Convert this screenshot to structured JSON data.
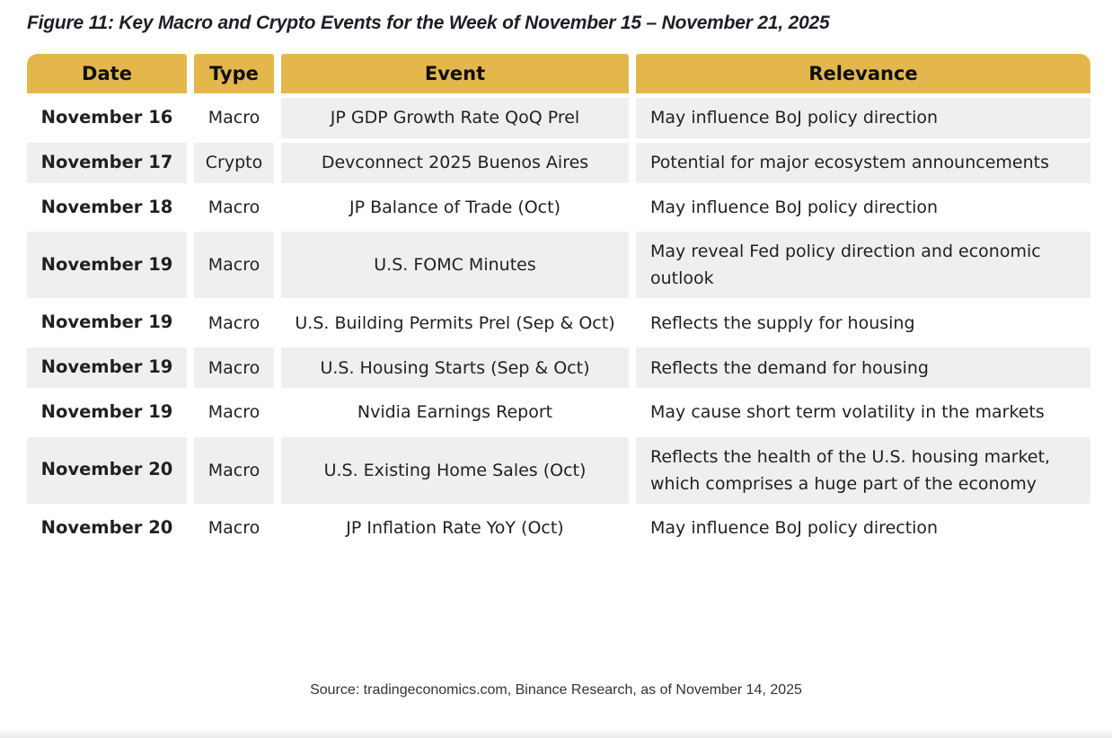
{
  "figure": {
    "title": "Figure 11: Key Macro and Crypto Events for the Week of November 15 – November 21, 2025"
  },
  "table": {
    "headers": [
      "Date",
      "Type",
      "Event",
      "Relevance"
    ],
    "rows": [
      {
        "date": "November 16",
        "type": "Macro",
        "event": "JP GDP Growth Rate QoQ Prel",
        "relevance": "May influence BoJ policy direction",
        "shading": [
          false,
          false,
          true,
          true
        ]
      },
      {
        "date": "November 17",
        "type": "Crypto",
        "event": "Devconnect 2025 Buenos Aires",
        "relevance": "Potential for major ecosystem announcements",
        "shading": [
          true,
          true,
          true,
          true
        ]
      },
      {
        "date": "November 18",
        "type": "Macro",
        "event": "JP Balance of Trade (Oct)",
        "relevance": "May influence BoJ policy direction",
        "shading": [
          false,
          false,
          false,
          false
        ]
      },
      {
        "date": "November 19",
        "type": "Macro",
        "event": "U.S. FOMC Minutes",
        "relevance": "May reveal Fed policy direction and economic outlook",
        "shading": [
          true,
          true,
          true,
          true
        ]
      },
      {
        "date": "November 19",
        "type": "Macro",
        "event": "U.S. Building Permits Prel (Sep & Oct)",
        "relevance": "Reflects the supply for housing",
        "shading": [
          false,
          false,
          false,
          false
        ]
      },
      {
        "date": "November 19",
        "type": "Macro",
        "event": "U.S. Housing Starts (Sep & Oct)",
        "relevance": "Reflects the demand for housing",
        "shading": [
          true,
          true,
          true,
          true
        ]
      },
      {
        "date": "November 19",
        "type": "Macro",
        "event": "Nvidia Earnings Report",
        "relevance": "May cause short term volatility in the markets",
        "shading": [
          false,
          false,
          false,
          false
        ]
      },
      {
        "date": "November 20",
        "type": "Macro",
        "event": "U.S. Existing Home Sales (Oct)",
        "relevance": "Reflects the health of the U.S. housing market, which comprises a huge part of the economy",
        "shading": [
          true,
          true,
          true,
          true
        ]
      },
      {
        "date": "November 20",
        "type": "Macro",
        "event": "JP Inflation Rate YoY (Oct)",
        "relevance": "May influence BoJ policy direction",
        "shading": [
          false,
          false,
          false,
          false
        ]
      }
    ]
  },
  "footer": {
    "source": "Source: tradingeconomics.com, Binance Research, as of November 14, 2025"
  },
  "colors": {
    "header_bg": "#E3B74C",
    "header_text": "#0E0E10",
    "shaded_bg": "#EFEFEF",
    "plain_bg": "#FFFFFF",
    "text_color": "#1F2023",
    "title_color": "#1D1F26"
  }
}
